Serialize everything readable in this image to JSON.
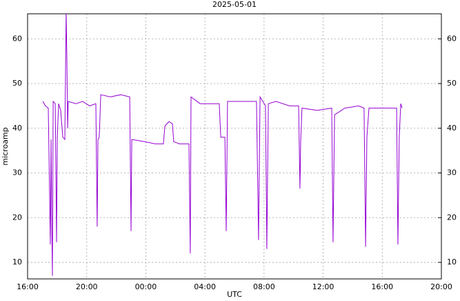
{
  "chart_data": {
    "type": "line",
    "title": "2025-05-01",
    "x_label": "UTC",
    "y_label": "microamp",
    "color": "#9400d3",
    "grid": true,
    "x": [
      17.03,
      17.21,
      17.4,
      17.54,
      17.59,
      17.63,
      17.68,
      17.73,
      17.87,
      17.96,
      18.01,
      18.1,
      18.24,
      18.38,
      18.52,
      18.61,
      18.66,
      18.71,
      18.75,
      19.27,
      19.73,
      20.2,
      20.62,
      20.71,
      20.76,
      20.85,
      20.95,
      21.6,
      22.3,
      22.91,
      23.0,
      23.05,
      23.93,
      24.63,
      25.19,
      25.29,
      25.57,
      25.8,
      25.89,
      26.27,
      26.92,
      27.01,
      27.06,
      27.67,
      28.37,
      28.97,
      29.07,
      29.35,
      29.44,
      29.53,
      30.47,
      31.49,
      31.63,
      31.73,
      32.1,
      32.19,
      32.29,
      32.8,
      33.73,
      34.34,
      34.43,
      34.48,
      34.57,
      35.6,
      36.58,
      36.67,
      36.77,
      37.47,
      38.4,
      38.77,
      38.87,
      38.96,
      39.1,
      40.27,
      40.97,
      41.06,
      41.15,
      41.25,
      41.34
    ],
    "values": [
      46,
      45,
      44.5,
      14,
      37.5,
      21,
      7,
      46,
      45.5,
      14.5,
      38,
      45.5,
      44,
      38,
      37.5,
      66,
      55.5,
      40,
      46,
      45.5,
      46,
      45,
      45.5,
      18,
      37.5,
      38,
      47.5,
      47,
      47.5,
      47,
      17,
      37.5,
      37,
      36.5,
      36.5,
      40.5,
      41.5,
      41,
      37,
      36.5,
      36.5,
      12,
      47,
      45.5,
      45.5,
      45.5,
      38,
      38,
      17,
      46,
      46,
      46,
      15,
      47,
      45,
      13,
      45.5,
      46,
      45,
      45,
      26.5,
      37,
      44.5,
      44,
      44.5,
      14.5,
      43,
      44.5,
      45,
      44.5,
      13.5,
      38,
      44.5,
      44.5,
      44.5,
      14,
      38,
      45.5,
      44.5
    ],
    "xlim": [
      16,
      44
    ],
    "xticks": [
      {
        "value": 16,
        "label": "16:00"
      },
      {
        "value": 20,
        "label": "20:00"
      },
      {
        "value": 24,
        "label": "00:00"
      },
      {
        "value": 28,
        "label": "04:00"
      },
      {
        "value": 32,
        "label": "08:00"
      },
      {
        "value": 36,
        "label": "12:00"
      },
      {
        "value": 40,
        "label": "16:00"
      },
      {
        "value": 44,
        "label": "20:00"
      }
    ],
    "ylim": [
      6.3,
      65.6
    ],
    "yticks": [
      10,
      20,
      30,
      40,
      50,
      60
    ],
    "y2lim": [
      6.3,
      65.6
    ],
    "y2ticks": [
      10,
      20,
      30,
      40,
      50,
      60
    ]
  }
}
